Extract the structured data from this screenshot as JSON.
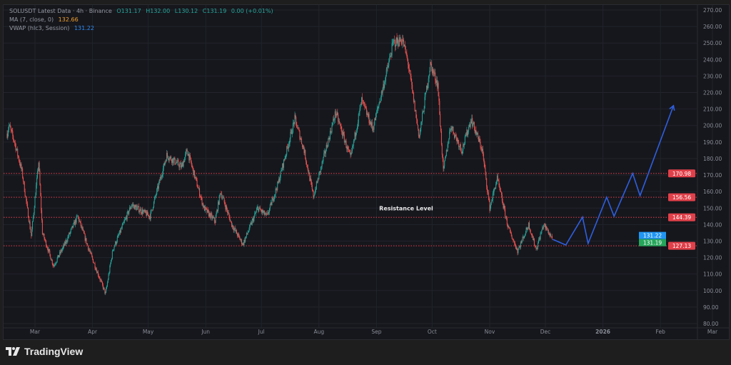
{
  "legend": {
    "title": "SOLUSDT Latest Data · 4h · Binance",
    "open": "O131.17",
    "high": "H132.00",
    "low": "L130.12",
    "close": "C131.19",
    "change": "0.00 (+0.01%)",
    "ma_label": "MA (7, close, 0)",
    "ma_value": "132.66",
    "vwap_label": "VWAP (hlc3, Session)",
    "vwap_value": "131.22"
  },
  "footer": {
    "brand": "TradingView"
  },
  "colors": {
    "up": "#26a69a",
    "down": "#ef5350",
    "projection": "#2f5fe0",
    "level": "#e0404a",
    "vwap_badge": "#2196f3",
    "price_badge": "#26a65b"
  },
  "chart_data": {
    "type": "candlestick",
    "symbol": "SOLUSDT",
    "timeframe": "4h",
    "ylim": [
      80,
      270
    ],
    "y_ticks": [
      "270.00",
      "260.00",
      "250.00",
      "240.00",
      "230.00",
      "220.00",
      "210.00",
      "200.00",
      "190.00",
      "180.00",
      "170.00",
      "160.00",
      "150.00",
      "140.00",
      "130.00",
      "120.00",
      "110.00",
      "100.00",
      "90.00",
      "80.00"
    ],
    "x_ticks": [
      {
        "label": "Mar",
        "date": "2025-03-01"
      },
      {
        "label": "Apr",
        "date": "2025-04-01"
      },
      {
        "label": "May",
        "date": "2025-05-01"
      },
      {
        "label": "Jun",
        "date": "2025-06-01"
      },
      {
        "label": "Jul",
        "date": "2025-07-01"
      },
      {
        "label": "Aug",
        "date": "2025-08-01"
      },
      {
        "label": "Sep",
        "date": "2025-09-01"
      },
      {
        "label": "Oct",
        "date": "2025-10-01"
      },
      {
        "label": "Nov",
        "date": "2025-11-01"
      },
      {
        "label": "Dec",
        "date": "2025-12-01"
      },
      {
        "label": "2026",
        "date": "2026-01-01"
      },
      {
        "label": "Feb",
        "date": "2026-02-01"
      },
      {
        "label": "Mar",
        "date": "2026-03-01"
      }
    ],
    "price_path": [
      [
        "2025-02-14",
        195
      ],
      [
        "2025-02-15",
        200
      ],
      [
        "2025-02-18",
        190
      ],
      [
        "2025-02-22",
        172
      ],
      [
        "2025-02-27",
        133
      ],
      [
        "2025-03-03",
        178
      ],
      [
        "2025-03-05",
        135
      ],
      [
        "2025-03-11",
        115
      ],
      [
        "2025-03-17",
        128
      ],
      [
        "2025-03-24",
        145
      ],
      [
        "2025-03-30",
        125
      ],
      [
        "2025-04-04",
        110
      ],
      [
        "2025-04-08",
        98
      ],
      [
        "2025-04-12",
        125
      ],
      [
        "2025-04-22",
        152
      ],
      [
        "2025-05-02",
        145
      ],
      [
        "2025-05-11",
        182
      ],
      [
        "2025-05-19",
        175
      ],
      [
        "2025-05-22",
        185
      ],
      [
        "2025-05-31",
        150
      ],
      [
        "2025-06-06",
        142
      ],
      [
        "2025-06-09",
        160
      ],
      [
        "2025-06-15",
        140
      ],
      [
        "2025-06-21",
        128
      ],
      [
        "2025-06-29",
        150
      ],
      [
        "2025-07-04",
        145
      ],
      [
        "2025-07-10",
        165
      ],
      [
        "2025-07-19",
        204
      ],
      [
        "2025-07-24",
        185
      ],
      [
        "2025-07-29",
        157
      ],
      [
        "2025-08-10",
        208
      ],
      [
        "2025-08-18",
        180
      ],
      [
        "2025-08-24",
        215
      ],
      [
        "2025-08-30",
        198
      ],
      [
        "2025-09-06",
        230
      ],
      [
        "2025-09-10",
        250
      ],
      [
        "2025-09-15",
        252
      ],
      [
        "2025-09-18",
        238
      ],
      [
        "2025-09-24",
        193
      ],
      [
        "2025-09-30",
        237
      ],
      [
        "2025-10-04",
        225
      ],
      [
        "2025-10-07",
        172
      ],
      [
        "2025-10-11",
        200
      ],
      [
        "2025-10-17",
        185
      ],
      [
        "2025-10-22",
        204
      ],
      [
        "2025-10-28",
        185
      ],
      [
        "2025-11-01",
        150
      ],
      [
        "2025-11-05",
        168
      ],
      [
        "2025-11-11",
        138
      ],
      [
        "2025-11-16",
        124
      ],
      [
        "2025-11-22",
        140
      ],
      [
        "2025-11-26",
        125
      ],
      [
        "2025-11-30",
        140
      ],
      [
        "2025-12-05",
        131.19
      ]
    ],
    "projection": [
      [
        "2025-12-05",
        131
      ],
      [
        "2025-12-12",
        127.6
      ],
      [
        "2025-12-21",
        144.5
      ],
      [
        "2025-12-24",
        128.5
      ],
      [
        "2026-01-03",
        156.6
      ],
      [
        "2026-01-07",
        145
      ],
      [
        "2026-01-17",
        171
      ],
      [
        "2026-01-21",
        157.5
      ],
      [
        "2026-02-08",
        212
      ]
    ],
    "levels": [
      {
        "value": 170.98,
        "label": "170.98"
      },
      {
        "value": 156.56,
        "label": "156.56"
      },
      {
        "value": 144.39,
        "label": "144.39"
      },
      {
        "value": 127.13,
        "label": "127.13"
      }
    ],
    "annotation": {
      "text": "Resistance Level",
      "price": 150,
      "date": "2025-09-17"
    },
    "badges": [
      {
        "label": "131.22",
        "price": 131.22,
        "kind": "vwap"
      },
      {
        "label": "131.19",
        "price": 131.19,
        "kind": "price"
      }
    ]
  }
}
